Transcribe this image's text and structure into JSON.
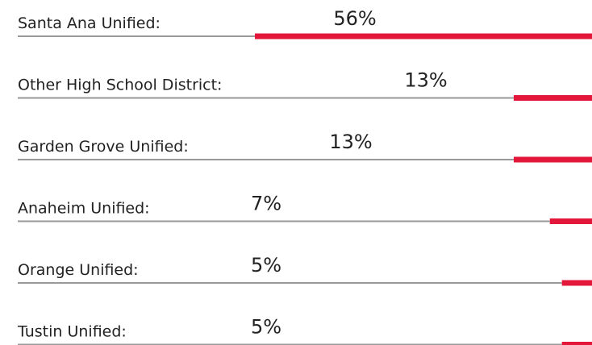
{
  "chart_data": {
    "type": "bar",
    "orientation": "horizontal",
    "categories": [
      "Santa Ana Unified:",
      "Other High School District:",
      "Garden Grove Unified:",
      "Anaheim Unified:",
      "Orange Unified:",
      "Tustin Unified:"
    ],
    "values": [
      56,
      13,
      13,
      7,
      5,
      5
    ],
    "value_labels": [
      "56%",
      "13%",
      "13%",
      "7%",
      "5%",
      "5%"
    ],
    "color": "#e3173a"
  }
}
